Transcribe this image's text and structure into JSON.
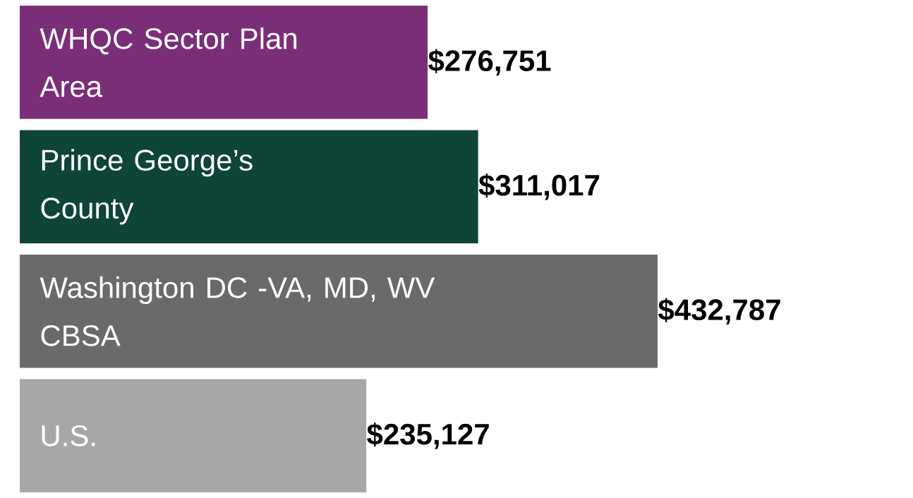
{
  "chart_data": {
    "type": "bar",
    "orientation": "horizontal",
    "categories": [
      "WHQC Sector Plan Area",
      "Prince George’s County",
      "Washington DC -VA, MD, WV CBSA",
      "U.S."
    ],
    "values": [
      276751,
      311017,
      432787,
      235127
    ],
    "colors": [
      "#7a2e78",
      "#0f4438",
      "#6a6a6a",
      "#a9a6a6"
    ],
    "value_labels": [
      "$276,751",
      "$311,017",
      "$432,787",
      "$235,127"
    ]
  }
}
